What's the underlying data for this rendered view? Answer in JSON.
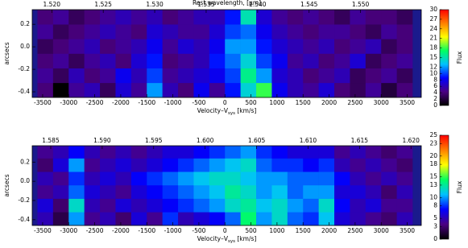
{
  "chart_data": [
    {
      "type": "heatmap",
      "x2label": "Rest wavelength, [μm]",
      "xlabel": "Velocity–V",
      "xlabel_sub": "sys",
      "xlabel_end": " [km/s]",
      "ylabel": "arcsecs",
      "colorbar_label": "Flux",
      "xlim": [
        -3700,
        3770
      ],
      "xticks": [
        -3500,
        -3000,
        -2500,
        -2000,
        -1500,
        -1000,
        -500,
        0,
        500,
        1000,
        1500,
        2000,
        2500,
        3000,
        3500
      ],
      "x2lim": [
        1.5181,
        1.5559
      ],
      "x2ticks": [
        {
          "value": 1.52,
          "label": "1.520"
        },
        {
          "value": 1.525,
          "label": "1.525"
        },
        {
          "value": 1.53,
          "label": "1.530"
        },
        {
          "value": 1.535,
          "label": "1.535"
        },
        {
          "value": 1.54,
          "label": "1.540"
        },
        {
          "value": 1.545,
          "label": "1.545"
        },
        {
          "value": 1.55,
          "label": "1.550"
        }
      ],
      "ylim": [
        -0.45,
        0.33
      ],
      "yticks": [
        -0.4,
        -0.2,
        {
          "value": 0,
          "label": "0.0"
        },
        0.2
      ],
      "clim": [
        0,
        30
      ],
      "cticks": [
        0,
        2,
        4,
        6,
        8,
        10,
        12,
        15,
        18,
        21,
        24,
        27,
        30
      ],
      "colormap": [
        "#000000",
        "#4b0082",
        "#0000ff",
        "#00c0ff",
        "#00ff60",
        "#ffff00",
        "#ff8000",
        "#ff0000"
      ],
      "xbins": [
        -3600,
        -3300,
        -3000,
        -2700,
        -2400,
        -2100,
        -1800,
        -1500,
        -1200,
        -900,
        -600,
        -300,
        0,
        300,
        600,
        900,
        1200,
        1500,
        1800,
        2100,
        2400,
        2700,
        3000,
        3300,
        3600
      ],
      "ybins": [
        -0.45,
        -0.32,
        -0.19,
        -0.06,
        0.07,
        0.2,
        0.33
      ],
      "values": [
        [
          4,
          0,
          5,
          6,
          3,
          7,
          5,
          12,
          6,
          4,
          8,
          5,
          9,
          14,
          18,
          8,
          6,
          5,
          7,
          4,
          3,
          5,
          2,
          4
        ],
        [
          5,
          3,
          6,
          4,
          5,
          8,
          6,
          10,
          5,
          6,
          7,
          8,
          10,
          16,
          12,
          7,
          6,
          4,
          5,
          6,
          3,
          4,
          5,
          3
        ],
        [
          4,
          5,
          3,
          5,
          6,
          4,
          7,
          9,
          4,
          5,
          6,
          9,
          11,
          14,
          10,
          8,
          5,
          6,
          4,
          5,
          7,
          3,
          4,
          5
        ],
        [
          3,
          4,
          5,
          6,
          4,
          5,
          6,
          8,
          5,
          7,
          6,
          8,
          12,
          12,
          9,
          7,
          6,
          5,
          6,
          4,
          5,
          6,
          3,
          4
        ],
        [
          5,
          3,
          4,
          5,
          6,
          5,
          4,
          7,
          6,
          5,
          5,
          7,
          10,
          11,
          8,
          6,
          5,
          4,
          5,
          5,
          4,
          3,
          5,
          4
        ],
        [
          4,
          5,
          3,
          4,
          5,
          6,
          5,
          6,
          4,
          5,
          6,
          6,
          9,
          15,
          7,
          5,
          4,
          5,
          4,
          3,
          5,
          4,
          4,
          3
        ]
      ]
    },
    {
      "type": "heatmap",
      "xlabel": "Velocity–V",
      "xlabel_sub": "sys",
      "xlabel_end": " [km/s]",
      "ylabel": "arcsecs",
      "colorbar_label": "Flux",
      "xlim": [
        -3700,
        3770
      ],
      "xticks": [
        -3500,
        -3000,
        -2500,
        -2000,
        -1500,
        -1000,
        -500,
        0,
        500,
        1000,
        1500,
        2000,
        2500,
        3000,
        3500
      ],
      "x2lim": [
        1.5832,
        1.621
      ],
      "x2ticks": [
        {
          "value": 1.585,
          "label": "1.585"
        },
        {
          "value": 1.59,
          "label": "1.590"
        },
        {
          "value": 1.595,
          "label": "1.595"
        },
        {
          "value": 1.6,
          "label": "1.600"
        },
        {
          "value": 1.605,
          "label": "1.605"
        },
        {
          "value": 1.61,
          "label": "1.610"
        },
        {
          "value": 1.615,
          "label": "1.615"
        },
        {
          "value": 1.62,
          "label": "1.620"
        }
      ],
      "ylim": [
        -0.46,
        0.37
      ],
      "yticks": [
        -0.4,
        -0.2,
        {
          "value": 0,
          "label": "0.0"
        },
        0.2
      ],
      "clim": [
        0,
        25
      ],
      "cticks": [
        0,
        3,
        5,
        8,
        10,
        13,
        15,
        18,
        20,
        23,
        25
      ],
      "colormap": [
        "#000000",
        "#4b0082",
        "#0000ff",
        "#00c0ff",
        "#00ff60",
        "#ffff00",
        "#ff8000",
        "#ff0000"
      ],
      "xbins": [
        -3600,
        -3300,
        -3000,
        -2700,
        -2400,
        -2100,
        -1800,
        -1500,
        -1200,
        -900,
        -600,
        -300,
        0,
        300,
        600,
        900,
        1200,
        1500,
        1800,
        2100,
        2400,
        2700,
        3000,
        3300,
        3600
      ],
      "ybins": [
        -0.46,
        -0.32,
        -0.18,
        -0.04,
        0.1,
        0.24,
        0.37
      ],
      "values": [
        [
          5,
          2,
          10,
          4,
          5,
          3,
          6,
          4,
          8,
          5,
          6,
          7,
          9,
          14,
          10,
          12,
          9,
          8,
          11,
          6,
          5,
          4,
          3,
          5
        ],
        [
          6,
          3,
          12,
          5,
          4,
          6,
          5,
          6,
          7,
          8,
          9,
          10,
          12,
          13,
          11,
          12,
          10,
          9,
          12,
          7,
          5,
          6,
          4,
          4
        ],
        [
          4,
          5,
          9,
          6,
          5,
          4,
          6,
          7,
          8,
          9,
          10,
          11,
          13,
          12,
          10,
          11,
          9,
          10,
          10,
          6,
          6,
          5,
          3,
          5
        ],
        [
          5,
          4,
          8,
          5,
          6,
          5,
          7,
          8,
          9,
          10,
          11,
          12,
          12,
          11,
          10,
          10,
          9,
          9,
          9,
          7,
          5,
          4,
          5,
          4
        ],
        [
          3,
          6,
          10,
          4,
          5,
          6,
          5,
          6,
          7,
          8,
          9,
          10,
          11,
          12,
          9,
          8,
          8,
          7,
          8,
          5,
          4,
          5,
          4,
          3
        ],
        [
          4,
          5,
          7,
          5,
          4,
          5,
          4,
          5,
          6,
          6,
          7,
          8,
          9,
          10,
          8,
          7,
          6,
          6,
          6,
          4,
          5,
          4,
          3,
          4
        ]
      ]
    }
  ]
}
